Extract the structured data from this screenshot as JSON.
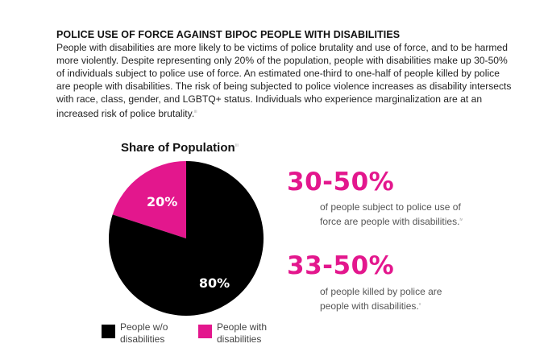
{
  "heading": "POLICE USE OF FORCE AGAINST BIPOC PEOPLE WITH DISABILITIES",
  "paragraph": "People with disabilities are more likely to be victims of police brutality and use of force, and to be harmed more violently. Despite representing only 20% of the population, people with disabilities make up 30-50% of individuals subject to police use of force. An estimated one-third to one-half of people killed by police are people with disabilities. The risk of being subjected to police violence increases as disability intersects with race, class, gender, and LGBTQ+ status. Individuals who experience marginalization are at an increased risk of police brutality.",
  "paragraph_note": "iii",
  "colors": {
    "accent": "#e3178d",
    "dark": "#000000"
  },
  "chart_data": {
    "type": "pie",
    "title": "Share of Population",
    "title_note": "iii",
    "slices": [
      {
        "label": "People w/o disabilities",
        "value": 80,
        "display": "80%",
        "color": "#000000",
        "text_color": "#ffffff"
      },
      {
        "label": "People with disabilities",
        "value": 20,
        "display": "20%",
        "color": "#e3178d",
        "text_color": "#ffffff"
      }
    ],
    "legend_placement": "bottom"
  },
  "stats": [
    {
      "value": "30-50%",
      "description": "of people subject to police use of force are people with disabilities.",
      "note": "iv"
    },
    {
      "value": "33-50%",
      "description": "of people killed by police are people with disabilities.",
      "note": "v"
    }
  ]
}
